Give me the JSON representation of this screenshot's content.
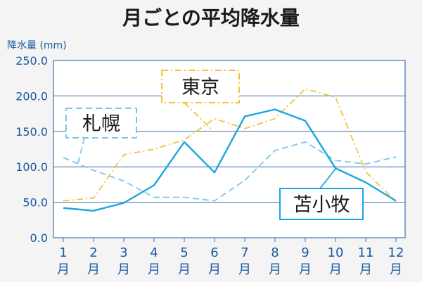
{
  "chart_data": {
    "type": "line",
    "title": "月ごとの平均降水量",
    "ylabel": "降水量 (mm)",
    "ylim": [
      0,
      250
    ],
    "yticks": [
      "0.0",
      "50.0",
      "100.0",
      "150.0",
      "200.0",
      "250.0"
    ],
    "categories": [
      {
        "num": "1",
        "unit": "月"
      },
      {
        "num": "2",
        "unit": "月"
      },
      {
        "num": "3",
        "unit": "月"
      },
      {
        "num": "4",
        "unit": "月"
      },
      {
        "num": "5",
        "unit": "月"
      },
      {
        "num": "6",
        "unit": "月"
      },
      {
        "num": "7",
        "unit": "月"
      },
      {
        "num": "8",
        "unit": "月"
      },
      {
        "num": "9",
        "unit": "月"
      },
      {
        "num": "10",
        "unit": "月"
      },
      {
        "num": "11",
        "unit": "月"
      },
      {
        "num": "12",
        "unit": "月"
      }
    ],
    "grid": true,
    "series": [
      {
        "name": "東京",
        "color": "#f5c23a",
        "style": "dash-dot",
        "values": [
          52,
          56,
          117,
          125,
          138,
          168,
          154,
          168,
          210,
          198,
          93,
          51
        ]
      },
      {
        "name": "札幌",
        "color": "#7cc6ea",
        "style": "dashed",
        "values": [
          113,
          95,
          80,
          57,
          57,
          52,
          81,
          123,
          135,
          109,
          104,
          114
        ]
      },
      {
        "name": "苫小牧",
        "color": "#1aa6e0",
        "style": "solid",
        "values": [
          42,
          38,
          49,
          74,
          135,
          92,
          171,
          181,
          165,
          98,
          78,
          52
        ]
      }
    ]
  }
}
